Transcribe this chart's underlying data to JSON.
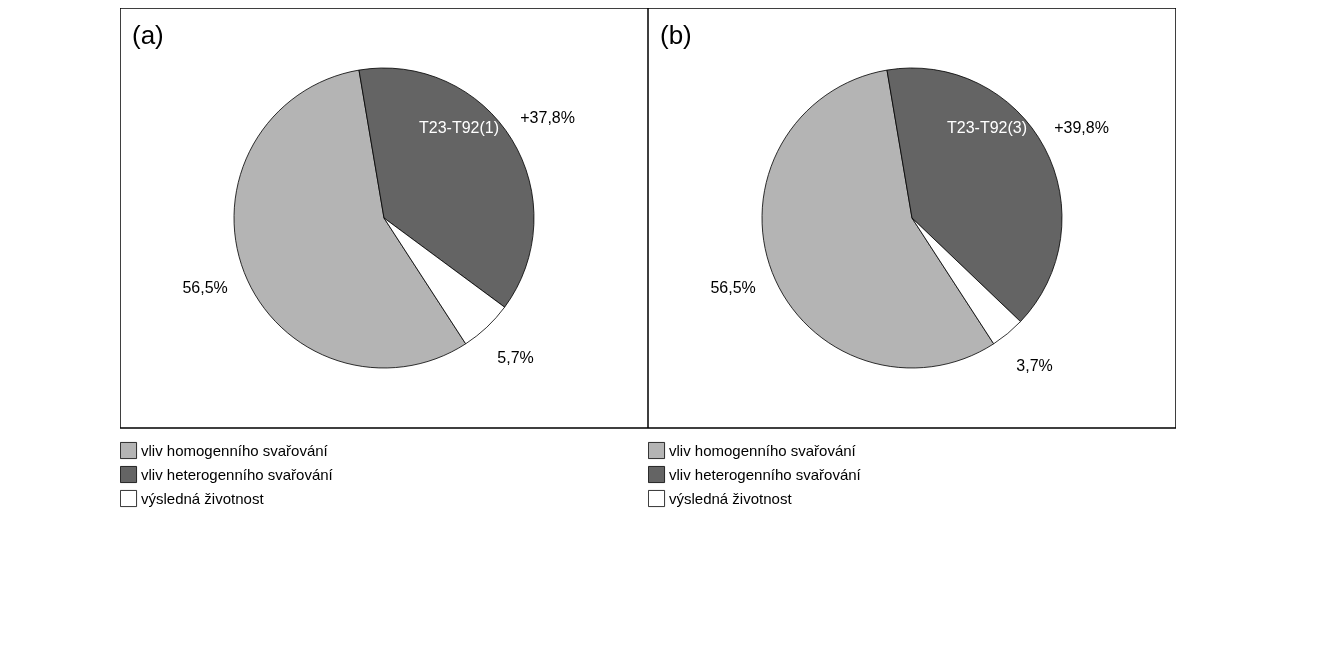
{
  "chart_data": [
    {
      "type": "pie",
      "title": "(a)",
      "categories": [
        "vliv homogenního svařování",
        "vliv heterogenního svařování",
        "výsledná životnost"
      ],
      "values": [
        56.5,
        37.8,
        5.7
      ],
      "value_labels": [
        "56,5%",
        "+37,8%",
        "5,7%"
      ],
      "colors": [
        "#b4b4b4",
        "#646464",
        "#ffffff"
      ],
      "annotations": [
        "T23-T92(1)"
      ],
      "legend": "bottom"
    },
    {
      "type": "pie",
      "title": "(b)",
      "categories": [
        "vliv homogenního svařování",
        "vliv heterogenního svařování",
        "výsledná životnost"
      ],
      "values": [
        56.5,
        39.8,
        3.7
      ],
      "value_labels": [
        "56,5%",
        "+39,8%",
        "3,7%"
      ],
      "colors": [
        "#b4b4b4",
        "#646464",
        "#ffffff"
      ],
      "annotations": [
        "T23-T92(3)"
      ],
      "legend": "bottom"
    }
  ]
}
